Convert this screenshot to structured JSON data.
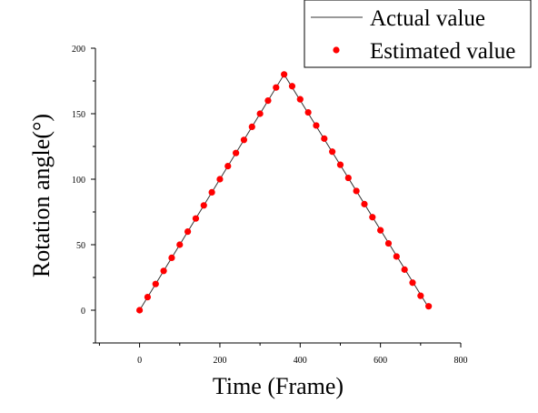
{
  "chart_data": {
    "type": "line",
    "title": "",
    "xlabel": "Time (Frame)",
    "ylabel": "Rotation angle(°)",
    "xlim": [
      -110,
      800
    ],
    "ylim": [
      -25,
      200
    ],
    "x_ticks": [
      0,
      200,
      400,
      600,
      800
    ],
    "y_ticks": [
      0,
      50,
      100,
      150,
      200
    ],
    "legend_position": "top-right",
    "grid": false,
    "series": [
      {
        "name": "Actual value",
        "style": "line",
        "color": "#333333",
        "x": [
          0,
          360,
          720
        ],
        "y": [
          0,
          180,
          2
        ]
      },
      {
        "name": "Estimated value",
        "style": "scatter",
        "color": "#ff0000",
        "x": [
          0,
          20,
          40,
          60,
          80,
          100,
          120,
          140,
          160,
          180,
          200,
          220,
          240,
          260,
          280,
          300,
          320,
          340,
          360,
          380,
          400,
          420,
          440,
          460,
          480,
          500,
          520,
          540,
          560,
          580,
          600,
          620,
          640,
          660,
          680,
          700,
          720
        ],
        "y": [
          0,
          10,
          20,
          30,
          40,
          50,
          60,
          70,
          80,
          90,
          100,
          110,
          120,
          130,
          140,
          150,
          160,
          170,
          180,
          171,
          161,
          151,
          141,
          131,
          121,
          111,
          101,
          91,
          81,
          71,
          61,
          51,
          41,
          31,
          21,
          11,
          3
        ]
      }
    ]
  }
}
